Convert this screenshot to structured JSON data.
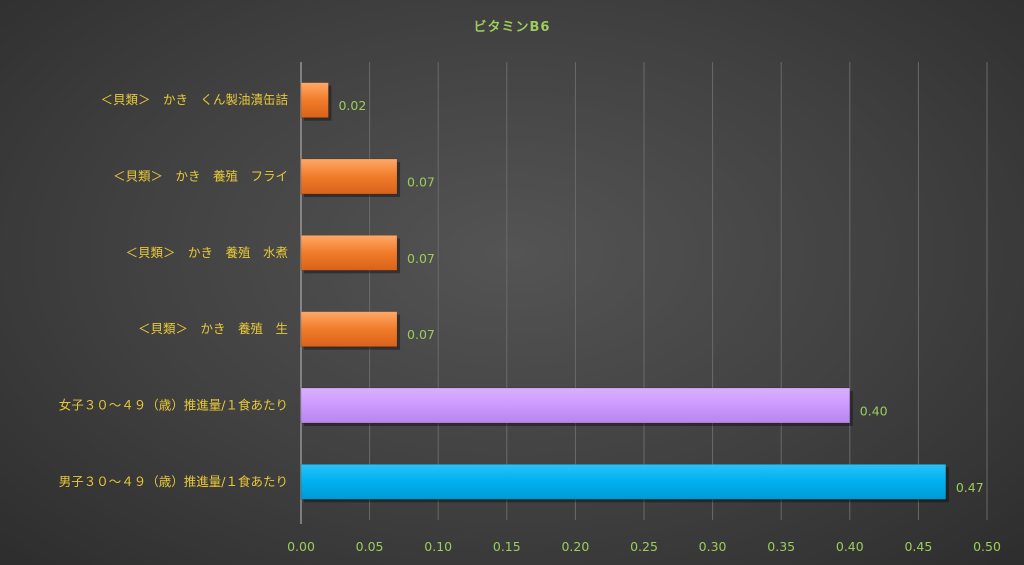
{
  "chart_data": {
    "type": "bar",
    "orientation": "horizontal",
    "title": "ビタミンB6",
    "xlabel": "",
    "ylabel": "",
    "xlim": [
      0,
      0.5
    ],
    "x_ticks": [
      "0.00",
      "0.05",
      "0.10",
      "0.15",
      "0.20",
      "0.25",
      "0.30",
      "0.35",
      "0.40",
      "0.45",
      "0.50"
    ],
    "tick_step": 0.05,
    "grid": "vertical",
    "legend": "none",
    "categories": [
      "＜貝類＞　かき　くん製油漬缶詰",
      "＜貝類＞　かき　養殖　フライ",
      "＜貝類＞　かき　養殖　水煮",
      "＜貝類＞　かき　養殖　生",
      "女子３０～４９（歳）推進量/１食あたり",
      "男子３０～４９（歳）推進量/１食あたり"
    ],
    "values": [
      0.02,
      0.07,
      0.07,
      0.07,
      0.4,
      0.47
    ],
    "value_labels": [
      "0.02",
      "0.07",
      "0.07",
      "0.07",
      "0.40",
      "0.47"
    ],
    "colors": [
      "#f07c2a",
      "#f07c2a",
      "#f07c2a",
      "#f07c2a",
      "#cc99ff",
      "#00b0f0"
    ]
  }
}
